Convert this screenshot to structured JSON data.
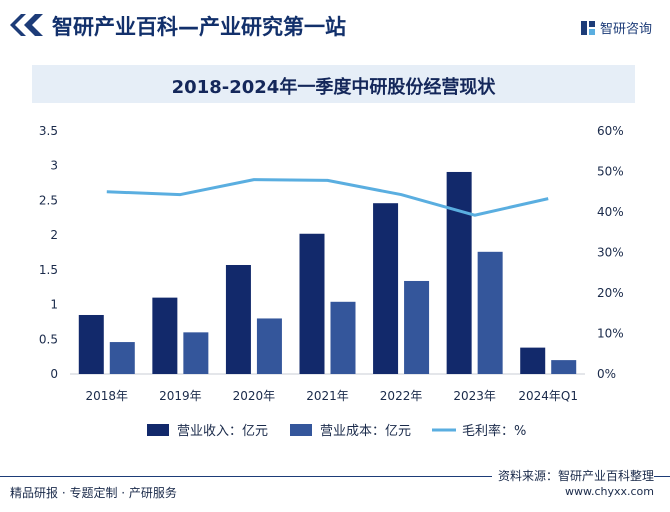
{
  "header": {
    "title": "智研产业百科—产业研究第一站",
    "logo_text": "智研咨询",
    "logo_icon": "zhiyan-logo-icon"
  },
  "colors": {
    "revenue": "#12296b",
    "cost": "#34569b",
    "margin": "#5aaee0",
    "title_bg": "#e6eef7"
  },
  "chart_data": {
    "type": "bar",
    "title": "2018-2024年一季度中研股份经营现状",
    "categories": [
      "2018年",
      "2019年",
      "2020年",
      "2021年",
      "2022年",
      "2023年",
      "2024年Q1"
    ],
    "series": [
      {
        "name": "营业收入：亿元",
        "type": "bar",
        "axis": "left",
        "values": [
          0.85,
          1.1,
          1.57,
          2.02,
          2.46,
          2.91,
          0.38
        ]
      },
      {
        "name": "营业成本：亿元",
        "type": "bar",
        "axis": "left",
        "values": [
          0.46,
          0.6,
          0.8,
          1.04,
          1.34,
          1.76,
          0.2
        ]
      },
      {
        "name": "毛利率：%",
        "type": "line",
        "axis": "right",
        "values": [
          45.0,
          44.3,
          48.0,
          47.8,
          44.3,
          39.2,
          43.3
        ]
      }
    ],
    "y_left": {
      "min": 0,
      "max": 3.5,
      "ticks": [
        "0",
        "0.5",
        "1",
        "1.5",
        "2",
        "2.5",
        "3",
        "3.5"
      ]
    },
    "y_right": {
      "min": 0,
      "max": 60,
      "ticks": [
        "0%",
        "10%",
        "20%",
        "30%",
        "40%",
        "50%",
        "60%"
      ]
    },
    "legend_position": "bottom",
    "grid": false
  },
  "footer": {
    "source": "资料来源：智研产业百科整理",
    "website": "www.chyxx.com",
    "slogan": "精品研报 · 专题定制 · 产研服务"
  }
}
